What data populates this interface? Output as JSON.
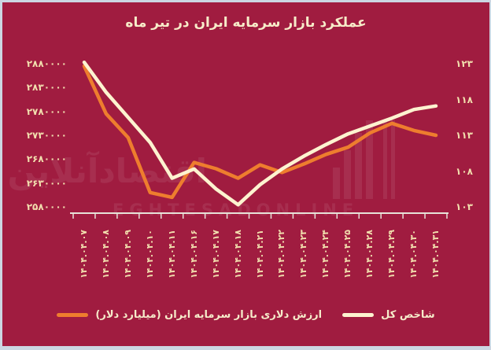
{
  "title": "عملکرد بازار سرمایه ایران در تیر ماه",
  "colors": {
    "background": "#a01c40",
    "frame_border": "#ccd6e2",
    "title_text": "#f7ecc9",
    "axis_text": "#f2dfae",
    "axis_line": "#e7e2d8",
    "series_index": "#fdf3d0",
    "series_dollar": "#ee7d2e"
  },
  "watermark": {
    "text_latin": "EGHTESADONLINE",
    "text_fa": "اقتصادآنلاین"
  },
  "chart_data": {
    "type": "line",
    "title": "عملکرد بازار سرمایه ایران در تیر ماه",
    "grid": false,
    "legend_position": "bottom",
    "categories": [
      "۱۴۰۴.۰۴.۰۷",
      "۱۴۰۴.۰۴.۰۸",
      "۱۴۰۴.۰۴.۰۹",
      "۱۴۰۴.۰۴.۱۰",
      "۱۴۰۴.۰۴.۱۱",
      "۱۴۰۴.۰۴.۱۶",
      "۱۴۰۴.۰۴.۱۷",
      "۱۴۰۴.۰۴.۱۸",
      "۱۴۰۴.۰۴.۲۱",
      "۱۴۰۴.۰۴.۲۲",
      "۱۴۰۴.۰۴.۲۳",
      "۱۴۰۴.۰۴.۲۴",
      "۱۴۰۴.۰۴.۲۵",
      "۱۴۰۴.۰۴.۲۸",
      "۱۴۰۴.۰۴.۲۹",
      "۱۴۰۴.۰۴.۳۰",
      "۱۴۰۴.۰۴.۳۱"
    ],
    "left_axis": {
      "ticks": [
        "۲۸۸۰۰۰۰",
        "۲۸۳۰۰۰۰",
        "۲۷۸۰۰۰۰",
        "۲۷۳۰۰۰۰",
        "۲۶۸۰۰۰۰",
        "۲۶۳۰۰۰۰",
        "۲۵۸۰۰۰۰"
      ],
      "tick_values": [
        2880000,
        2830000,
        2780000,
        2730000,
        2680000,
        2630000,
        2580000
      ],
      "range": [
        2580000,
        2880000
      ]
    },
    "right_axis": {
      "ticks": [
        "۱۲۳",
        "۱۱۸",
        "۱۱۳",
        "۱۰۸",
        "۱۰۳"
      ],
      "tick_values": [
        123,
        118,
        113,
        108,
        103
      ],
      "range": [
        103,
        123
      ]
    },
    "series": [
      {
        "id": "total-index",
        "name": "شاخص کل",
        "axis": "right",
        "color": "#fdf3d0",
        "values": [
          123.2,
          119.0,
          115.5,
          112.0,
          107.0,
          108.3,
          105.5,
          103.3,
          106.1,
          108.3,
          110.1,
          111.7,
          113.2,
          114.3,
          115.4,
          116.6,
          117.1
        ]
      },
      {
        "id": "dollar-value",
        "name": "ارزش دلاری بازار سرمایه ایران (میلیارد دلار)",
        "axis": "left",
        "color": "#ee7d2e",
        "values": [
          2875000,
          2775000,
          2725000,
          2610000,
          2600000,
          2673000,
          2660000,
          2640000,
          2668000,
          2652000,
          2670000,
          2690000,
          2705000,
          2735000,
          2755000,
          2740000,
          2730000
        ]
      }
    ]
  }
}
